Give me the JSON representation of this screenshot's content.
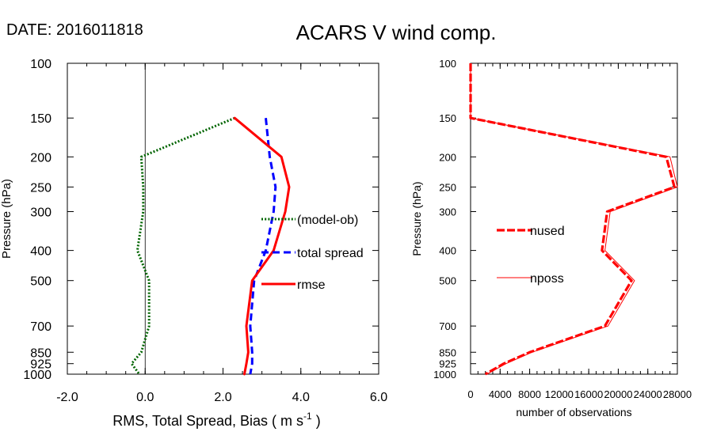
{
  "header": {
    "date_label": "DATE: 2016011818",
    "title": "ACARS V wind comp."
  },
  "pressure_levels": [
    100,
    150,
    200,
    250,
    300,
    400,
    500,
    700,
    850,
    925,
    1000
  ],
  "chart_data": [
    {
      "type": "line",
      "title": "ACARS V wind comp.",
      "xlabel": "RMS, Total Spread, Bias ( m s",
      "xlabel_superscript": "-1",
      "xlabel_suffix": " )",
      "ylabel": "Pressure (hPa)",
      "xlim": [
        -2.0,
        6.0
      ],
      "ylim": [
        1000,
        100
      ],
      "y_scale": "log",
      "x_ticks": [
        "-2.0",
        "0.0",
        "2.0",
        "4.0",
        "6.0"
      ],
      "y_ticks": [
        "100",
        "150",
        "200",
        "250",
        "300",
        "400",
        "500",
        "700",
        "850",
        "925",
        "1000"
      ],
      "zero_line": true,
      "legend_position": "right-middle",
      "series": [
        {
          "name": "(model-ob)",
          "color": "#006400",
          "style": "dotted",
          "points": [
            [
              2.3,
              150
            ],
            [
              -0.1,
              200
            ],
            [
              -0.05,
              250
            ],
            [
              -0.05,
              300
            ],
            [
              -0.2,
              400
            ],
            [
              0.1,
              500
            ],
            [
              0.1,
              700
            ],
            [
              -0.1,
              850
            ],
            [
              -0.35,
              925
            ],
            [
              -0.15,
              1000
            ]
          ]
        },
        {
          "name": "total spread",
          "color": "#0000ff",
          "style": "dashed",
          "points": [
            [
              3.1,
              150
            ],
            [
              3.2,
              200
            ],
            [
              3.35,
              250
            ],
            [
              3.3,
              300
            ],
            [
              3.1,
              400
            ],
            [
              2.8,
              500
            ],
            [
              2.7,
              700
            ],
            [
              2.75,
              850
            ],
            [
              2.75,
              925
            ],
            [
              2.7,
              1000
            ]
          ]
        },
        {
          "name": "rmse",
          "color": "#ff0000",
          "style": "solid",
          "points": [
            [
              2.3,
              150
            ],
            [
              3.5,
              200
            ],
            [
              3.7,
              250
            ],
            [
              3.6,
              300
            ],
            [
              3.3,
              400
            ],
            [
              2.75,
              500
            ],
            [
              2.6,
              700
            ],
            [
              2.65,
              850
            ],
            [
              2.6,
              925
            ],
            [
              2.55,
              1000
            ]
          ]
        }
      ]
    },
    {
      "type": "line",
      "xlabel": "number of observations",
      "ylabel": "Pressure (hPa)",
      "xlim": [
        0,
        28000
      ],
      "ylim": [
        1000,
        100
      ],
      "y_scale": "log",
      "x_ticks": [
        "0",
        "4000",
        "8000",
        "12000",
        "16000",
        "20000",
        "24000",
        "28000"
      ],
      "y_ticks": [
        "100",
        "150",
        "200",
        "250",
        "300",
        "400",
        "500",
        "700",
        "850",
        "925",
        "1000"
      ],
      "legend_position": "left-middle",
      "series": [
        {
          "name": "nused",
          "color": "#ff0000",
          "style": "dashed-thick",
          "points": [
            [
              0,
              100
            ],
            [
              0,
              150
            ],
            [
              26500,
              200
            ],
            [
              27600,
              250
            ],
            [
              18500,
              300
            ],
            [
              17800,
              400
            ],
            [
              21800,
              500
            ],
            [
              18200,
              700
            ],
            [
              8000,
              850
            ],
            [
              4500,
              925
            ],
            [
              2000,
              1000
            ]
          ]
        },
        {
          "name": "nposs",
          "color": "#ff0000",
          "style": "thin-solid",
          "points": [
            [
              0,
              100
            ],
            [
              0,
              150
            ],
            [
              27000,
              200
            ],
            [
              28000,
              250
            ],
            [
              18900,
              300
            ],
            [
              18200,
              400
            ],
            [
              22200,
              500
            ],
            [
              18600,
              700
            ],
            [
              8300,
              850
            ],
            [
              4800,
              925
            ],
            [
              2200,
              1000
            ]
          ]
        }
      ]
    }
  ]
}
